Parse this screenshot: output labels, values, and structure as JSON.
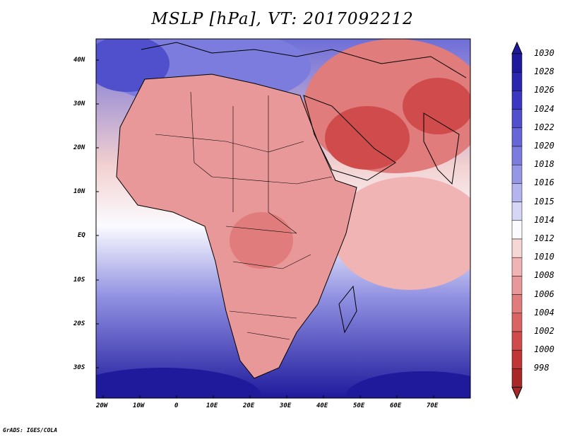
{
  "title": "MSLP [hPa], VT: 2017092212",
  "credit": "GrADS: IGES/COLA",
  "lat_labels": [
    "40N",
    "30N",
    "20N",
    "10N",
    "EQ",
    "10S",
    "20S",
    "30S"
  ],
  "lon_labels": [
    "20W",
    "10W",
    "0",
    "10E",
    "20E",
    "30E",
    "40E",
    "50E",
    "60E",
    "70E"
  ],
  "colorbar": {
    "levels": [
      "1030",
      "1028",
      "1026",
      "1024",
      "1022",
      "1020",
      "1018",
      "1016",
      "1015",
      "1014",
      "1012",
      "1010",
      "1008",
      "1006",
      "1004",
      "1002",
      "1000",
      "998"
    ],
    "colors": [
      "#1f1a9c",
      "#2a26ae",
      "#3a37c0",
      "#5050cc",
      "#6666d6",
      "#7c7cde",
      "#9696e6",
      "#b4b4ee",
      "#d6d6f6",
      "#fbfbff",
      "#f7d6d6",
      "#f0b4b4",
      "#e89898",
      "#e07c7c",
      "#d86464",
      "#d04c4c",
      "#c03636",
      "#a82828"
    ]
  },
  "colors": {
    "ocean_high": "#3a37c0",
    "ocean_mid": "#9696e6",
    "land_low": "#e89898",
    "land_lower": "#d86464"
  }
}
